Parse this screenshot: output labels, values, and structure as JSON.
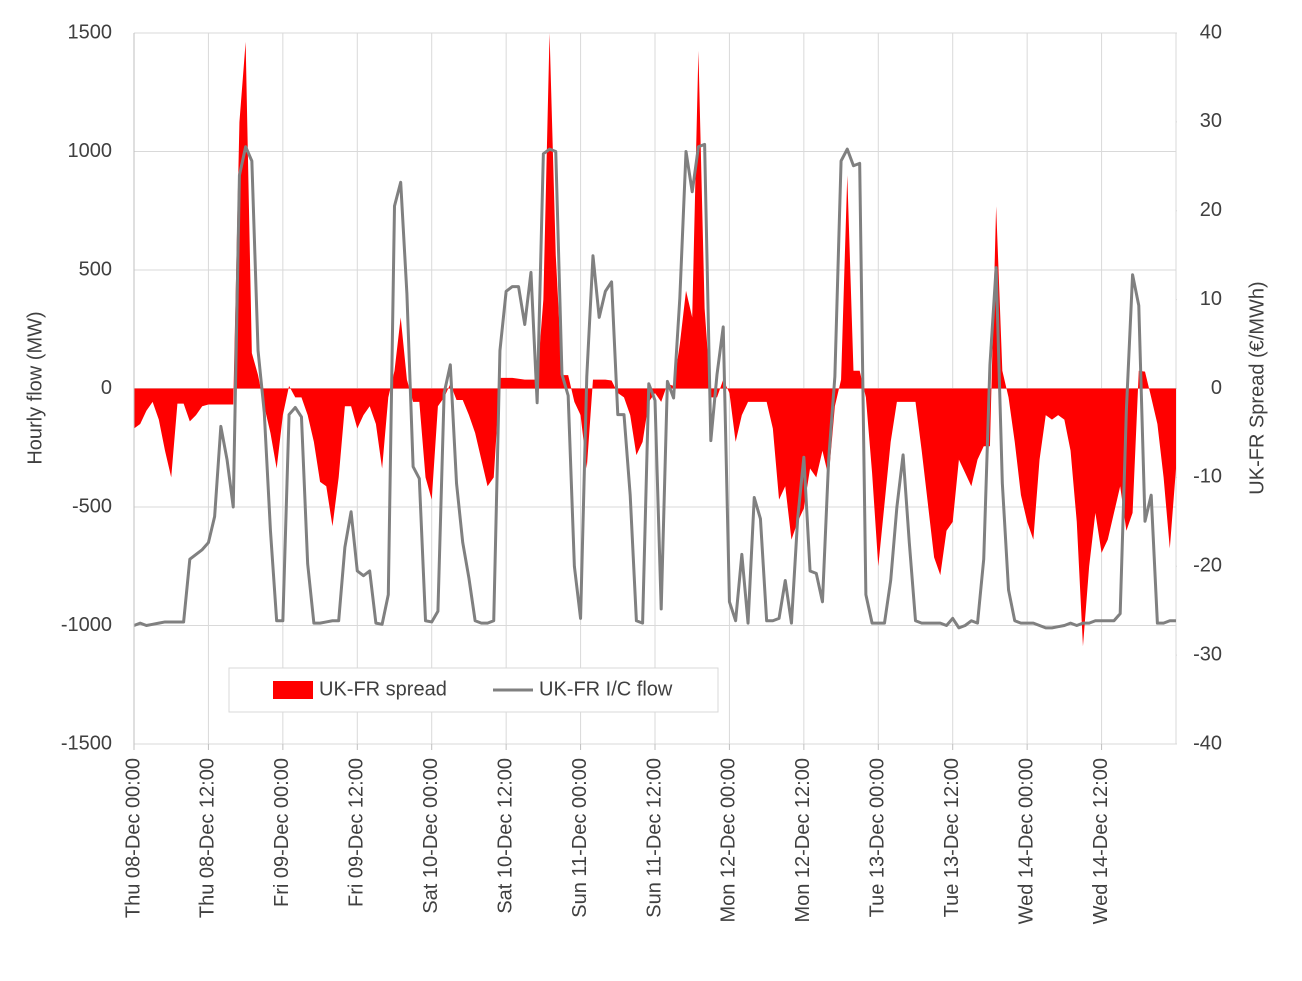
{
  "chart_data": {
    "type": "combo",
    "x": [
      0,
      1,
      2,
      3,
      4,
      5,
      6,
      7,
      8,
      9,
      10,
      11,
      12,
      13,
      14,
      15,
      16,
      17,
      18,
      19,
      20,
      21,
      22,
      23,
      24,
      25,
      26,
      27,
      28,
      29,
      30,
      31,
      32,
      33,
      34,
      35,
      36,
      37,
      38,
      39,
      40,
      41,
      42,
      43,
      44,
      45,
      46,
      47,
      48,
      49,
      50,
      51,
      52,
      53,
      54,
      55,
      56,
      57,
      58,
      59,
      60,
      61,
      62,
      63,
      64,
      65,
      66,
      67,
      68,
      69,
      70,
      71,
      72,
      73,
      74,
      75,
      76,
      77,
      78,
      79,
      80,
      81,
      82,
      83,
      84,
      85,
      86,
      87,
      88,
      89,
      90,
      91,
      92,
      93,
      94,
      95,
      96,
      97,
      98,
      99,
      100,
      101,
      102,
      103,
      104,
      105,
      106,
      107,
      108,
      109,
      110,
      111,
      112,
      113,
      114,
      115,
      116,
      117,
      118,
      119,
      120,
      121,
      122,
      123,
      124,
      125,
      126,
      127,
      128,
      129,
      130,
      131,
      132,
      133,
      134,
      135,
      136,
      137,
      138,
      139,
      140,
      141,
      142,
      143,
      144,
      145,
      146,
      147,
      148,
      149,
      150,
      151,
      152,
      153,
      154,
      155,
      156,
      157,
      158,
      159,
      160,
      161,
      162,
      163,
      164,
      165,
      166,
      167,
      168
    ],
    "xlim": [
      0,
      168
    ],
    "xticks": [
      {
        "value": 0,
        "label": "Thu 08-Dec 00:00"
      },
      {
        "value": 12,
        "label": "Thu 08-Dec 12:00"
      },
      {
        "value": 24,
        "label": "Fri 09-Dec 00:00"
      },
      {
        "value": 36,
        "label": "Fri 09-Dec 12:00"
      },
      {
        "value": 48,
        "label": "Sat 10-Dec 00:00"
      },
      {
        "value": 60,
        "label": "Sat 10-Dec 12:00"
      },
      {
        "value": 72,
        "label": "Sun 11-Dec 00:00"
      },
      {
        "value": 84,
        "label": "Sun 11-Dec 12:00"
      },
      {
        "value": 96,
        "label": "Mon 12-Dec 00:00"
      },
      {
        "value": 108,
        "label": "Mon 12-Dec 12:00"
      },
      {
        "value": 120,
        "label": "Tue 13-Dec 00:00"
      },
      {
        "value": 132,
        "label": "Tue 13-Dec 12:00"
      },
      {
        "value": 144,
        "label": "Wed 14-Dec 00:00"
      },
      {
        "value": 156,
        "label": "Wed 14-Dec 12:00"
      }
    ],
    "ylabel": "Hourly  flow (MW)",
    "ylim": [
      -1500,
      1500
    ],
    "yticks": [
      -1500,
      -1000,
      -500,
      0,
      500,
      1000,
      1500
    ],
    "y2label": "UK-FR Spread (€/MWh)",
    "y2lim": [
      -40,
      40
    ],
    "y2ticks": [
      -40,
      -30,
      -20,
      -10,
      0,
      10,
      20,
      30,
      40
    ],
    "grid": true,
    "legend": "lower left",
    "series": [
      {
        "name": "UK-FR spread",
        "type": "area",
        "axis": "y2",
        "color": "#ff0000",
        "values": [
          -4.5,
          -4,
          -2.5,
          -1.5,
          -3.5,
          -7,
          -10,
          -1.7,
          -1.7,
          -3.7,
          -3,
          -2,
          -1.8,
          -1.8,
          -1.8,
          -1.8,
          -1.8,
          30,
          39,
          4,
          1.5,
          -2,
          -5,
          -9,
          -3,
          0.3,
          -1,
          -1,
          -3,
          -6,
          -10.5,
          -11,
          -15.5,
          -10,
          -2,
          -2,
          -4.5,
          -3,
          -2,
          -4,
          -9,
          -1,
          2,
          8,
          1,
          -1.5,
          -1.5,
          -10,
          -12.5,
          -2,
          -1,
          0.5,
          -1.3,
          -1.3,
          -3,
          -5,
          -8,
          -11,
          -10,
          1.2,
          1.2,
          1.2,
          1.1,
          1,
          1,
          1,
          10,
          40,
          15,
          1.5,
          1.5,
          -1.5,
          -3,
          -9,
          1,
          1,
          1,
          0.9,
          -0.5,
          -1,
          -3,
          -7.5,
          -6,
          -1.5,
          -0.5,
          -1.5,
          0.5,
          0.3,
          5,
          11,
          8,
          38,
          9,
          -1,
          -1,
          1,
          -0.5,
          -6,
          -3,
          -1.5,
          -1.5,
          -1.5,
          -1.5,
          -4.5,
          -12.5,
          -11,
          -17,
          -15,
          -13.5,
          -9,
          -10,
          -7,
          -10,
          -2,
          1,
          24,
          2,
          2,
          -1,
          -9.5,
          -20,
          -13,
          -6,
          -1.5,
          -1.5,
          -1.5,
          -1.5,
          -7,
          -13,
          -19,
          -21,
          -16,
          -15,
          -8,
          -9.5,
          -11,
          -8,
          -6.5,
          -6.5,
          20.5,
          2,
          -1,
          -6,
          -12,
          -15,
          -17,
          -8,
          -3,
          -3.5,
          -3,
          -3.5,
          -7,
          -15,
          -29,
          -20,
          -14,
          -18.5,
          -17,
          -14,
          -11,
          -16,
          -14,
          2,
          1.9,
          -1,
          -4,
          -10,
          -18,
          -9
        ]
      },
      {
        "name": "UK-FR I/C flow",
        "type": "line",
        "axis": "y",
        "color": "#808080",
        "values": [
          -1000,
          -990,
          -1000,
          -995,
          -990,
          -985,
          -985,
          -985,
          -985,
          -720,
          -700,
          -680,
          -650,
          -540,
          -160,
          -300,
          -500,
          900,
          1020,
          960,
          160,
          -100,
          -600,
          -980,
          -980,
          -110,
          -80,
          -120,
          -740,
          -990,
          -990,
          -985,
          -980,
          -980,
          -670,
          -520,
          -770,
          -790,
          -770,
          -990,
          -995,
          -870,
          770,
          870,
          400,
          -330,
          -380,
          -980,
          -985,
          -940,
          -20,
          100,
          -400,
          -650,
          -800,
          -980,
          -990,
          -990,
          -980,
          160,
          410,
          430,
          430,
          270,
          490,
          -60,
          990,
          1010,
          1000,
          60,
          -30,
          -750,
          -970,
          50,
          560,
          300,
          410,
          450,
          -110,
          -110,
          -450,
          -980,
          -990,
          20,
          -50,
          -930,
          30,
          -40,
          380,
          1000,
          830,
          1020,
          1030,
          -220,
          60,
          260,
          -900,
          -980,
          -700,
          -990,
          -460,
          -550,
          -980,
          -980,
          -970,
          -810,
          -990,
          -550,
          -290,
          -770,
          -780,
          -900,
          -300,
          50,
          960,
          1010,
          940,
          950,
          -870,
          -990,
          -990,
          -990,
          -810,
          -500,
          -280,
          -650,
          -980,
          -990,
          -990,
          -990,
          -990,
          -1000,
          -970,
          -1010,
          -1000,
          -980,
          -990,
          -720,
          100,
          510,
          -400,
          -850,
          -980,
          -990,
          -990,
          -990,
          -1000,
          -1010,
          -1010,
          -1005,
          -1000,
          -990,
          -1000,
          -990,
          -990,
          -980,
          -980,
          -980,
          -980,
          -950,
          -90,
          480,
          350,
          -560,
          -450,
          -990,
          -990,
          -980,
          -980
        ]
      }
    ]
  }
}
